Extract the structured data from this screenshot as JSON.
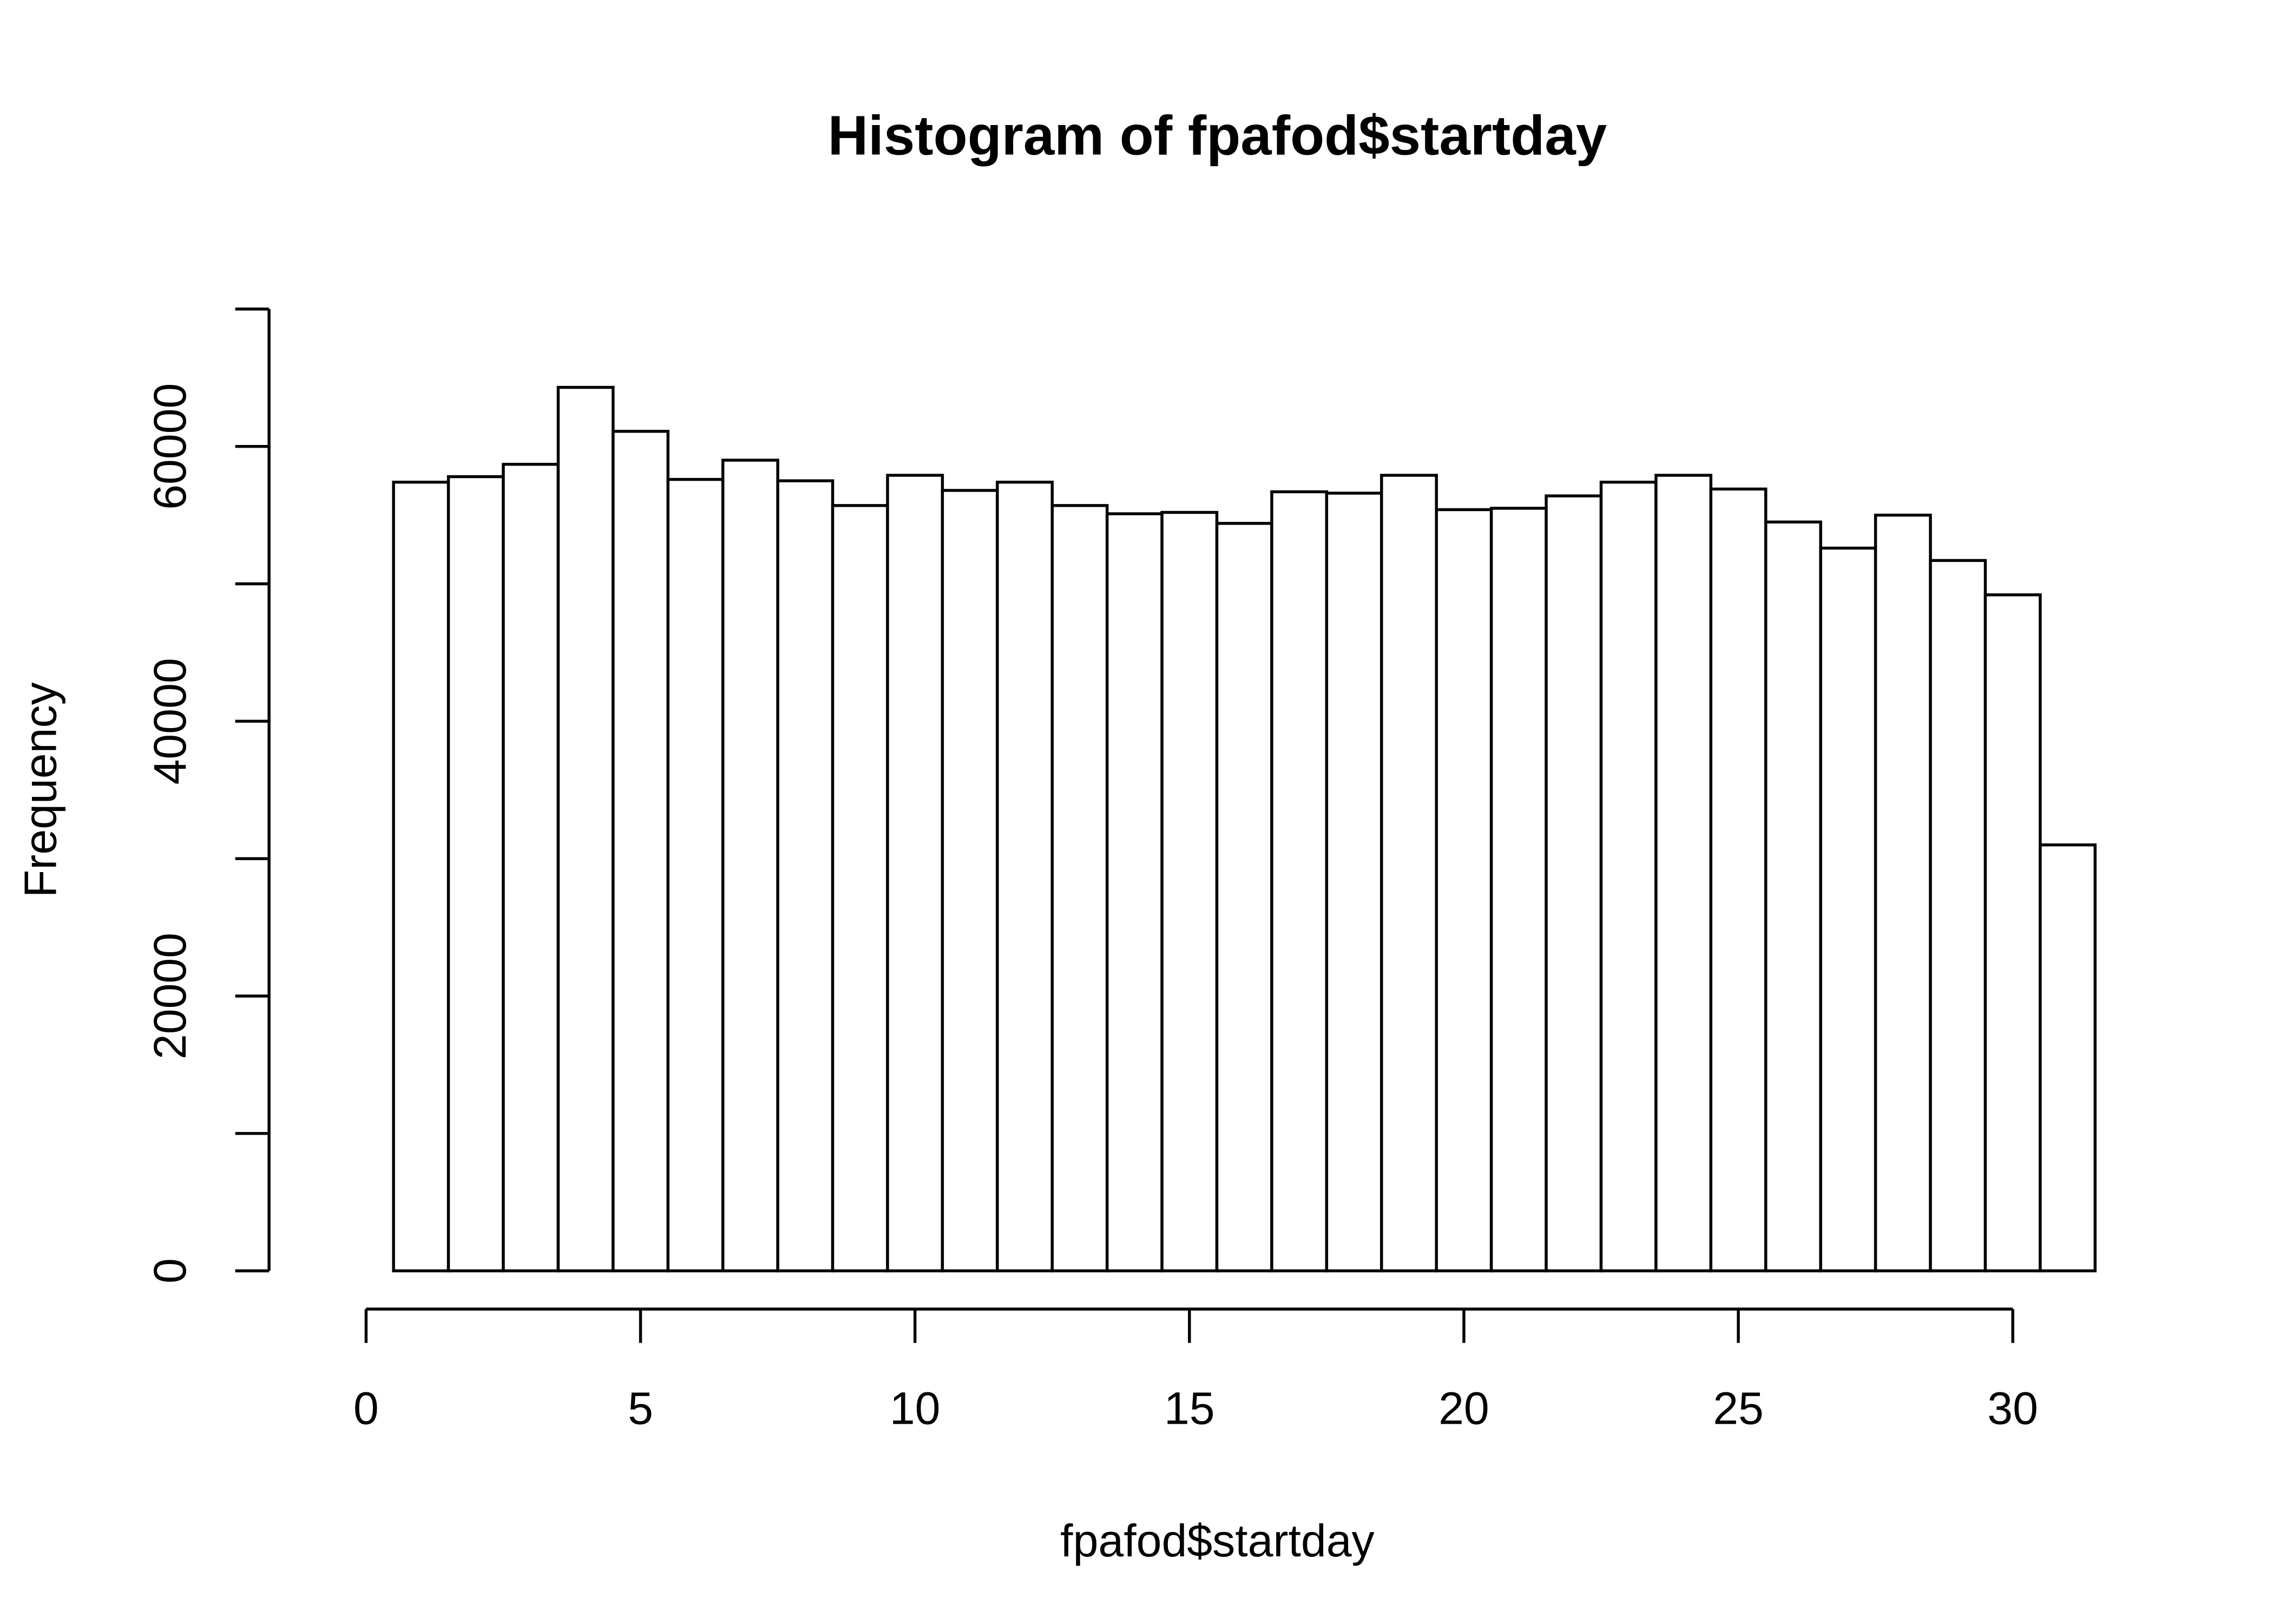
{
  "chart_data": {
    "type": "histogram",
    "title": "Histogram of fpafod$startday",
    "x_label": "fpafod$startday",
    "y_label": "Frequency",
    "bins": [
      -0.5,
      0.5,
      1.5,
      2.5,
      3.5,
      4.5,
      5.5,
      6.5,
      7.5,
      8.5,
      9.5,
      10.5,
      11.5,
      12.5,
      13.5,
      14.5,
      15.5,
      16.5,
      17.5,
      18.5,
      19.5,
      20.5,
      21.5,
      22.5,
      23.5,
      24.5,
      25.5,
      26.5,
      27.5,
      28.5,
      29.5,
      30.5,
      31.5
    ],
    "counts": [
      0,
      57400,
      57800,
      58700,
      64300,
      61100,
      57600,
      59000,
      57500,
      55700,
      57900,
      56800,
      57400,
      55700,
      55100,
      55200,
      54400,
      56700,
      56600,
      57900,
      55400,
      55500,
      56400,
      57400,
      57900,
      56900,
      54500,
      52600,
      55000,
      51700,
      49200,
      31000
    ],
    "color": "#ffffff",
    "xlim": [
      0,
      30
    ],
    "xticks": [
      0,
      5,
      10,
      15,
      20,
      25,
      30
    ],
    "ylim": [
      0,
      70000
    ],
    "yticks": [
      0,
      20000,
      40000,
      60000
    ],
    "yminor_ticks": [
      10000,
      30000,
      50000,
      70000
    ],
    "grid": false
  }
}
